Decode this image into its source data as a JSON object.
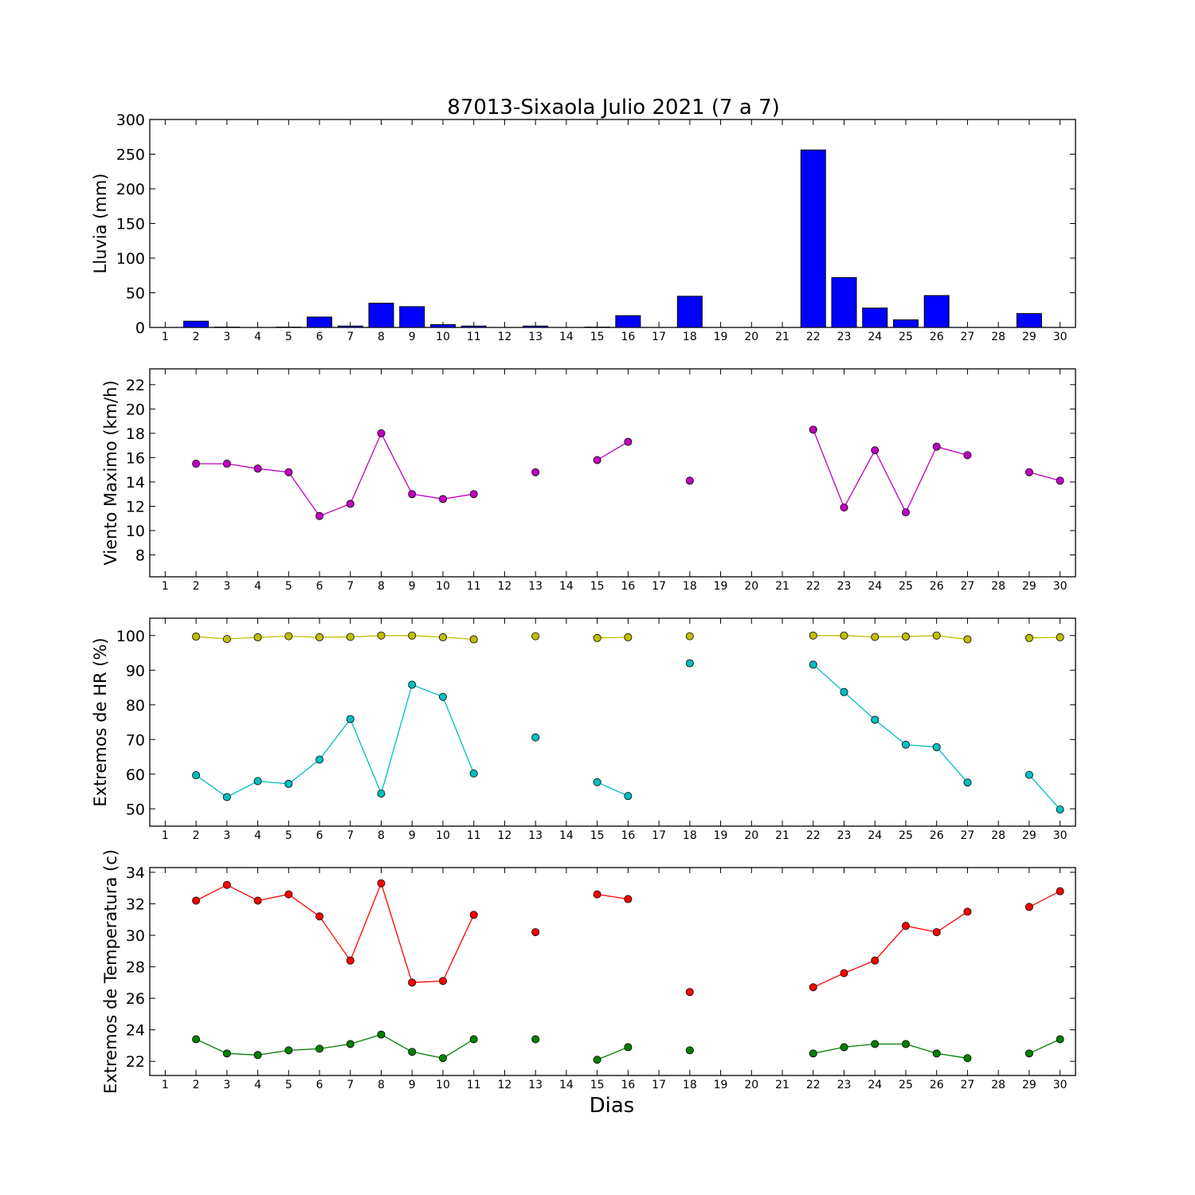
{
  "figure": {
    "title": "87013-Sixaola Julio 2021  (7 a 7)",
    "xlabel": "Dias"
  },
  "chart_data": [
    {
      "type": "bar",
      "ylabel": "Lluvia (mm)",
      "x": [
        1,
        2,
        3,
        4,
        5,
        6,
        7,
        8,
        9,
        10,
        11,
        12,
        13,
        14,
        15,
        16,
        17,
        18,
        19,
        20,
        21,
        22,
        23,
        24,
        25,
        26,
        27,
        28,
        29,
        30
      ],
      "xlim": [
        0.5,
        30.5
      ],
      "ylim": [
        0,
        300
      ],
      "yticks": [
        0,
        50,
        100,
        150,
        200,
        250,
        300
      ],
      "series": [
        {
          "color": "#0000ff",
          "values": [
            0,
            9,
            0.5,
            0,
            0.5,
            15,
            2,
            35,
            30,
            4,
            2,
            0,
            2,
            0,
            0.5,
            17,
            0,
            45,
            0,
            0,
            0,
            256,
            72,
            28,
            11,
            46,
            0,
            0,
            20,
            0
          ]
        }
      ]
    },
    {
      "type": "line",
      "ylabel": "Viento Maximo (km/h)",
      "x": [
        1,
        2,
        3,
        4,
        5,
        6,
        7,
        8,
        9,
        10,
        11,
        12,
        13,
        14,
        15,
        16,
        17,
        18,
        19,
        20,
        21,
        22,
        23,
        24,
        25,
        26,
        27,
        28,
        29,
        30
      ],
      "xlim": [
        0.5,
        30.5
      ],
      "ylim": [
        6.2,
        23.3
      ],
      "yticks": [
        8,
        10,
        12,
        14,
        16,
        18,
        20,
        22
      ],
      "series": [
        {
          "color": "#bf00bf",
          "values": [
            null,
            15.5,
            15.5,
            15.1,
            14.8,
            11.2,
            12.2,
            18.0,
            13.0,
            12.6,
            13.0,
            null,
            14.8,
            null,
            15.8,
            17.3,
            null,
            14.1,
            null,
            null,
            null,
            18.3,
            11.9,
            16.6,
            11.5,
            16.9,
            16.2,
            null,
            14.8,
            14.1
          ]
        }
      ]
    },
    {
      "type": "line",
      "ylabel": "Extremos de HR (%)",
      "x": [
        1,
        2,
        3,
        4,
        5,
        6,
        7,
        8,
        9,
        10,
        11,
        12,
        13,
        14,
        15,
        16,
        17,
        18,
        19,
        20,
        21,
        22,
        23,
        24,
        25,
        26,
        27,
        28,
        29,
        30
      ],
      "xlim": [
        0.5,
        30.5
      ],
      "ylim": [
        45,
        105
      ],
      "yticks": [
        50,
        60,
        70,
        80,
        90,
        100
      ],
      "series": [
        {
          "color": "#bfbf00",
          "values": [
            null,
            99.7,
            99,
            99.5,
            99.8,
            99.5,
            99.6,
            100,
            100,
            99.5,
            98.9,
            null,
            99.8,
            null,
            99.3,
            99.5,
            null,
            99.8,
            null,
            null,
            null,
            100,
            100,
            99.6,
            99.7,
            100,
            98.9,
            null,
            99.3,
            99.5
          ]
        },
        {
          "color": "#00bfbf",
          "values": [
            null,
            59.7,
            53.4,
            58,
            57.2,
            64.2,
            75.9,
            54.4,
            85.8,
            82.3,
            60.2,
            null,
            70.6,
            null,
            57.7,
            53.7,
            null,
            92,
            null,
            null,
            null,
            91.6,
            83.7,
            75.7,
            68.5,
            67.8,
            57.6,
            null,
            59.8,
            49.8
          ]
        }
      ]
    },
    {
      "type": "line",
      "ylabel": "Extremos de Temperatura (c)",
      "x": [
        1,
        2,
        3,
        4,
        5,
        6,
        7,
        8,
        9,
        10,
        11,
        12,
        13,
        14,
        15,
        16,
        17,
        18,
        19,
        20,
        21,
        22,
        23,
        24,
        25,
        26,
        27,
        28,
        29,
        30
      ],
      "xlim": [
        0.5,
        30.5
      ],
      "ylim": [
        21.1,
        34.3
      ],
      "yticks": [
        22,
        24,
        26,
        28,
        30,
        32,
        34
      ],
      "series": [
        {
          "color": "#ff0000",
          "values": [
            null,
            32.2,
            33.2,
            32.2,
            32.6,
            31.2,
            28.4,
            33.3,
            27.0,
            27.1,
            31.3,
            null,
            30.2,
            null,
            32.6,
            32.3,
            null,
            26.4,
            null,
            null,
            null,
            26.7,
            27.6,
            28.4,
            30.6,
            30.2,
            31.5,
            null,
            31.8,
            32.8
          ]
        },
        {
          "color": "#008000",
          "values": [
            null,
            23.4,
            22.5,
            22.4,
            22.7,
            22.8,
            23.1,
            23.7,
            22.6,
            22.2,
            23.4,
            null,
            23.4,
            null,
            22.1,
            22.9,
            null,
            22.7,
            null,
            null,
            null,
            22.5,
            22.9,
            23.1,
            23.1,
            22.5,
            22.2,
            null,
            22.5,
            23.4
          ]
        }
      ]
    }
  ]
}
